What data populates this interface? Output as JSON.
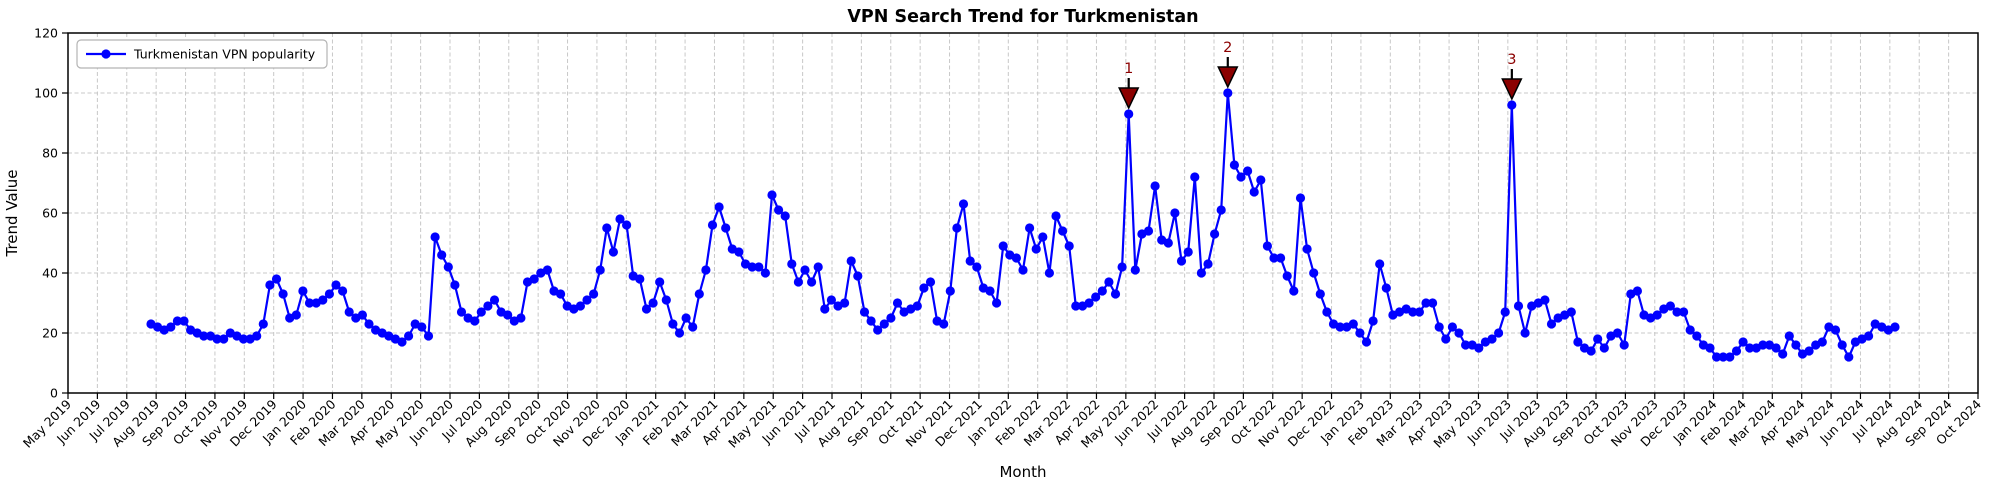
{
  "chart_data": {
    "type": "line",
    "title": "VPN Search Trend for Turkmenistan",
    "xlabel": "Month",
    "ylabel": "Trend Value",
    "ylim": [
      0,
      120
    ],
    "yticks": [
      0,
      20,
      40,
      60,
      80,
      100,
      120
    ],
    "grid": "dashed-both-axes",
    "x_tick_labels": [
      "May 2019",
      "Jun 2019",
      "Jul 2019",
      "Aug 2019",
      "Sep 2019",
      "Oct 2019",
      "Nov 2019",
      "Dec 2019",
      "Jan 2020",
      "Feb 2020",
      "Mar 2020",
      "Apr 2020",
      "May 2020",
      "Jun 2020",
      "Jul 2020",
      "Aug 2020",
      "Sep 2020",
      "Oct 2020",
      "Nov 2020",
      "Dec 2020",
      "Jan 2021",
      "Feb 2021",
      "Mar 2021",
      "Apr 2021",
      "May 2021",
      "Jun 2021",
      "Jul 2021",
      "Aug 2021",
      "Sep 2021",
      "Oct 2021",
      "Nov 2021",
      "Dec 2021",
      "Jan 2022",
      "Feb 2022",
      "Mar 2022",
      "Apr 2022",
      "May 2022",
      "Jun 2022",
      "Jul 2022",
      "Aug 2022",
      "Sep 2022",
      "Oct 2022",
      "Nov 2022",
      "Dec 2022",
      "Jan 2023",
      "Feb 2023",
      "Mar 2023",
      "Apr 2023",
      "May 2023",
      "Jun 2023",
      "Jul 2023",
      "Aug 2023",
      "Sep 2023",
      "Oct 2023",
      "Nov 2023",
      "Dec 2023",
      "Jan 2024",
      "Feb 2024",
      "Mar 2024",
      "Apr 2024",
      "May 2024",
      "Jun 2024",
      "Jul 2024",
      "Aug 2024",
      "Sep 2024",
      "Oct 2024"
    ],
    "legend": {
      "position": "upper-left",
      "label": "Turkmenistan VPN popularity"
    },
    "series": [
      {
        "name": "Turkmenistan VPN popularity",
        "color": "#0000FF",
        "marker": "circle",
        "values": [
          23,
          22,
          21,
          22,
          24,
          24,
          21,
          20,
          19,
          19,
          18,
          18,
          20,
          19,
          18,
          18,
          19,
          23,
          36,
          38,
          33,
          25,
          26,
          34,
          30,
          30,
          31,
          33,
          36,
          34,
          27,
          25,
          26,
          23,
          21,
          20,
          19,
          18,
          17,
          19,
          23,
          22,
          19,
          52,
          46,
          42,
          36,
          27,
          25,
          24,
          27,
          29,
          31,
          27,
          26,
          24,
          25,
          37,
          38,
          40,
          41,
          34,
          33,
          29,
          28,
          29,
          31,
          33,
          41,
          55,
          47,
          58,
          56,
          39,
          38,
          28,
          30,
          37,
          31,
          23,
          20,
          25,
          22,
          33,
          41,
          56,
          62,
          55,
          48,
          47,
          43,
          42,
          42,
          40,
          66,
          61,
          59,
          43,
          37,
          41,
          37,
          42,
          28,
          31,
          29,
          30,
          44,
          39,
          27,
          24,
          21,
          23,
          25,
          30,
          27,
          28,
          29,
          35,
          37,
          24,
          23,
          34,
          55,
          63,
          44,
          42,
          35,
          34,
          30,
          49,
          46,
          45,
          41,
          55,
          48,
          52,
          40,
          59,
          54,
          49,
          29,
          29,
          30,
          32,
          34,
          37,
          33,
          42,
          93,
          41,
          53,
          54,
          69,
          51,
          50,
          60,
          44,
          47,
          72,
          40,
          43,
          53,
          61,
          100,
          76,
          72,
          74,
          67,
          71,
          49,
          45,
          45,
          39,
          34,
          65,
          48,
          40,
          33,
          27,
          23,
          22,
          22,
          23,
          20,
          17,
          24,
          43,
          35,
          26,
          27,
          28,
          27,
          27,
          30,
          30,
          22,
          18,
          22,
          20,
          16,
          16,
          15,
          17,
          18,
          20,
          27,
          96,
          29,
          20,
          29,
          30,
          31,
          23,
          25,
          26,
          27,
          17,
          15,
          14,
          18,
          15,
          19,
          20,
          16,
          33,
          34,
          26,
          25,
          26,
          28,
          29,
          27,
          27,
          21,
          19,
          16,
          15,
          12,
          12,
          12,
          14,
          17,
          15,
          15,
          16,
          16,
          15,
          13,
          19,
          16,
          13,
          14,
          16,
          17,
          22,
          21,
          16,
          12,
          17,
          18,
          19,
          23,
          22,
          21,
          22
        ]
      }
    ],
    "annotations": [
      {
        "label": "1",
        "index": 148,
        "value": 93
      },
      {
        "label": "2",
        "index": 163,
        "value": 100
      },
      {
        "label": "3",
        "index": 206,
        "value": 96
      }
    ],
    "colors": {
      "line": "#0000FF",
      "annotation": "#8B0000",
      "grid": "#c8c8c8",
      "legend_border": "#b3b3b3"
    }
  }
}
